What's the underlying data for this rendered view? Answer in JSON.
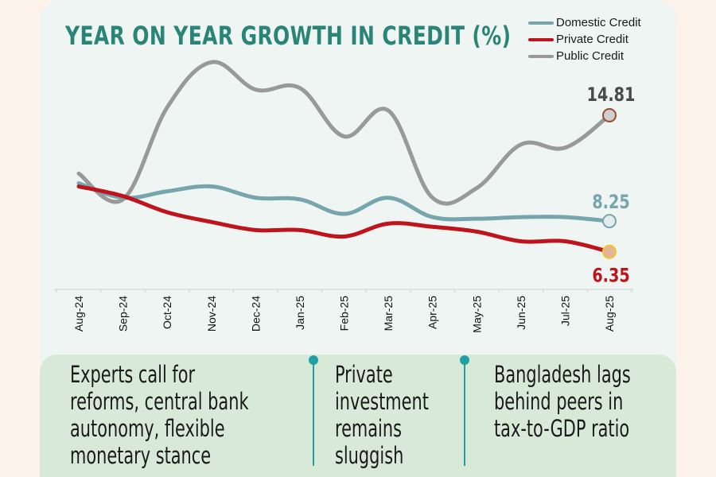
{
  "chart_data": {
    "type": "line",
    "title": "YEAR ON YEAR GROWTH IN CREDIT (%)",
    "xlabel": "",
    "ylabel": "",
    "x": [
      "Aug-24",
      "Sep-24",
      "Oct-24",
      "Nov-24",
      "Dec-24",
      "Jan-25",
      "Feb-25",
      "Mar-25",
      "Apr-25",
      "May-25",
      "Jun-25",
      "Jul-25",
      "Aug-25"
    ],
    "ylim": [
      0,
      20
    ],
    "grid": false,
    "legend_position": "top-right",
    "series": [
      {
        "name": "Domestic Credit",
        "color": "#76a5ae",
        "values": [
          10.6,
          9.7,
          10.1,
          10.4,
          9.7,
          9.6,
          8.7,
          9.7,
          8.5,
          8.4,
          8.5,
          8.5,
          8.25
        ],
        "end_label": "8.25"
      },
      {
        "name": "Private Credit",
        "color": "#c0141c",
        "values": [
          10.4,
          9.8,
          8.8,
          8.2,
          7.7,
          7.7,
          7.3,
          8.1,
          7.9,
          7.6,
          7.0,
          7.0,
          6.35
        ],
        "end_label": "6.35"
      },
      {
        "name": "Public Credit",
        "color": "#999999",
        "values": [
          11.2,
          9.6,
          15.3,
          18.1,
          16.4,
          16.5,
          13.5,
          15.1,
          9.7,
          10.3,
          13.0,
          12.8,
          14.81
        ],
        "end_label": "14.81"
      }
    ]
  },
  "legend": [
    {
      "label": "Domestic Credit",
      "color": "#76a5ae"
    },
    {
      "label": "Private Credit",
      "color": "#c0141c"
    },
    {
      "label": "Public Credit",
      "color": "#999999"
    }
  ],
  "notes": [
    {
      "lines": [
        "Experts call for",
        "reforms, central bank",
        "autonomy, flexible",
        "monetary stance"
      ]
    },
    {
      "lines": [
        "Private",
        "investment",
        "remains",
        "sluggish"
      ]
    },
    {
      "lines": [
        "Bangladesh lags",
        "behind peers in",
        "tax-to-GDP ratio"
      ]
    }
  ],
  "colors": {
    "title": "#2a8577",
    "card_bg": "#eef5f3",
    "page_bg": "#fdf3ea",
    "notes_bg": "#d9e9d8",
    "divider": "#1ea0a5"
  }
}
